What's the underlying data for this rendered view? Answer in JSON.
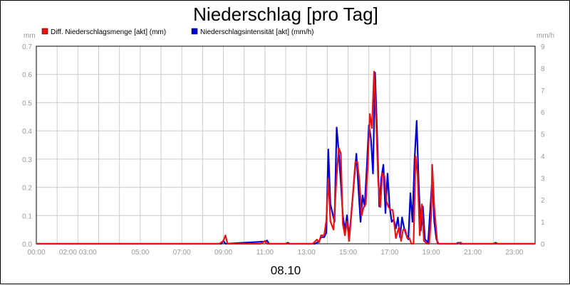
{
  "chart_data": {
    "type": "line",
    "title": "Niederschlag [pro Tag]",
    "date_label": "08.10",
    "y_left": {
      "unit": "mm",
      "ylim": [
        0,
        0.7
      ],
      "ticks": [
        "0.0",
        "0.1",
        "0.2",
        "0.3",
        "0.4",
        "0.5",
        "0.6",
        "0.7"
      ]
    },
    "y_right": {
      "unit": "mm/h",
      "ylim": [
        0,
        9
      ],
      "ticks": [
        "0",
        "1",
        "2",
        "3",
        "4",
        "5",
        "6",
        "7",
        "8",
        "9"
      ]
    },
    "x": {
      "range_hours": [
        0,
        24
      ],
      "tick_labels": [
        "00:00",
        "02:00 03:00",
        "05:00",
        "07:00",
        "09:00",
        "11:00",
        "13:00",
        "15:00",
        "17:00",
        "19:00",
        "21:00",
        "23:00"
      ]
    },
    "grid": true,
    "colors": {
      "menge": "#ee1111",
      "intensitaet": "#0000dd",
      "grid": "#cccccc",
      "tick_text": "#999999"
    },
    "series": [
      {
        "name": "Diff. Niederschlagsmenge [akt] (mm)",
        "axis": "left",
        "color": "#ee1111",
        "points": [
          [
            0,
            0
          ],
          [
            8.8,
            0
          ],
          [
            9.0,
            0.01
          ],
          [
            9.1,
            0.03
          ],
          [
            9.2,
            0
          ],
          [
            10.8,
            0
          ],
          [
            11.0,
            0.01
          ],
          [
            11.1,
            0
          ],
          [
            13.3,
            0
          ],
          [
            13.5,
            0.015
          ],
          [
            13.6,
            0.005
          ],
          [
            13.7,
            0.03
          ],
          [
            13.85,
            0.03
          ],
          [
            13.95,
            0.08
          ],
          [
            14.05,
            0.23
          ],
          [
            14.15,
            0.08
          ],
          [
            14.3,
            0.05
          ],
          [
            14.45,
            0.24
          ],
          [
            14.55,
            0.34
          ],
          [
            14.65,
            0.32
          ],
          [
            14.75,
            0.07
          ],
          [
            14.85,
            0.03
          ],
          [
            14.95,
            0.08
          ],
          [
            15.05,
            0.01
          ],
          [
            15.2,
            0.14
          ],
          [
            15.35,
            0.29
          ],
          [
            15.45,
            0.29
          ],
          [
            15.55,
            0.22
          ],
          [
            15.65,
            0.1
          ],
          [
            15.75,
            0.13
          ],
          [
            15.85,
            0.14
          ],
          [
            15.95,
            0.28
          ],
          [
            16.05,
            0.46
          ],
          [
            16.15,
            0.41
          ],
          [
            16.25,
            0.61
          ],
          [
            16.35,
            0.44
          ],
          [
            16.45,
            0.22
          ],
          [
            16.55,
            0.13
          ],
          [
            16.65,
            0.25
          ],
          [
            16.75,
            0.24
          ],
          [
            16.85,
            0.15
          ],
          [
            16.95,
            0.13
          ],
          [
            17.05,
            0.12
          ],
          [
            17.15,
            0.12
          ],
          [
            17.3,
            0.02
          ],
          [
            17.45,
            0.06
          ],
          [
            17.55,
            0.01
          ],
          [
            17.65,
            0.05
          ],
          [
            17.75,
            0.05
          ],
          [
            17.85,
            0.02
          ],
          [
            17.95,
            0.02
          ],
          [
            18.05,
            0.0
          ],
          [
            18.15,
            0.0
          ],
          [
            18.25,
            0.31
          ],
          [
            18.35,
            0.24
          ],
          [
            18.45,
            0.03
          ],
          [
            18.55,
            0.14
          ],
          [
            18.65,
            0.01
          ],
          [
            18.8,
            0.0
          ],
          [
            18.9,
            0.0
          ],
          [
            19.0,
            0.1
          ],
          [
            19.05,
            0.28
          ],
          [
            19.15,
            0.13
          ],
          [
            19.3,
            0.0
          ],
          [
            20.3,
            0.0
          ],
          [
            20.4,
            0.005
          ],
          [
            20.5,
            0.0
          ],
          [
            24,
            0
          ]
        ]
      },
      {
        "name": "Niederschlagsintensität [akt] (mm/h)",
        "axis": "right",
        "color": "#0000dd",
        "points": [
          [
            0,
            0
          ],
          [
            8.9,
            0
          ],
          [
            9.0,
            0.15
          ],
          [
            9.1,
            0
          ],
          [
            11.0,
            0.1
          ],
          [
            11.1,
            0.15
          ],
          [
            11.2,
            0
          ],
          [
            12.0,
            0
          ],
          [
            12.1,
            0.05
          ],
          [
            12.2,
            0
          ],
          [
            13.4,
            0
          ],
          [
            13.6,
            0.1
          ],
          [
            13.7,
            0.3
          ],
          [
            13.85,
            0.3
          ],
          [
            13.95,
            0.5
          ],
          [
            14.05,
            4.3
          ],
          [
            14.15,
            1.8
          ],
          [
            14.25,
            1.4
          ],
          [
            14.35,
            1.0
          ],
          [
            14.45,
            5.3
          ],
          [
            14.55,
            4.2
          ],
          [
            14.65,
            2.8
          ],
          [
            14.75,
            1.3
          ],
          [
            14.85,
            0.6
          ],
          [
            14.95,
            1.3
          ],
          [
            15.05,
            0.3
          ],
          [
            15.15,
            1.3
          ],
          [
            15.3,
            3.0
          ],
          [
            15.4,
            4.1
          ],
          [
            15.5,
            2.5
          ],
          [
            15.6,
            1.0
          ],
          [
            15.7,
            2.2
          ],
          [
            15.8,
            1.7
          ],
          [
            15.9,
            3.5
          ],
          [
            16.0,
            5.4
          ],
          [
            16.1,
            4.8
          ],
          [
            16.2,
            3.2
          ],
          [
            16.3,
            7.8
          ],
          [
            16.4,
            5.0
          ],
          [
            16.5,
            1.7
          ],
          [
            16.6,
            3.0
          ],
          [
            16.7,
            3.6
          ],
          [
            16.8,
            1.4
          ],
          [
            16.9,
            3.2
          ],
          [
            17.0,
            1.7
          ],
          [
            17.1,
            1.0
          ],
          [
            17.2,
            1.1
          ],
          [
            17.3,
            0.7
          ],
          [
            17.4,
            1.2
          ],
          [
            17.5,
            0.3
          ],
          [
            17.6,
            1.2
          ],
          [
            17.7,
            0.7
          ],
          [
            17.8,
            0.4
          ],
          [
            17.9,
            0.2
          ],
          [
            18.0,
            2.3
          ],
          [
            18.1,
            1.0
          ],
          [
            18.2,
            3.8
          ],
          [
            18.3,
            5.6
          ],
          [
            18.4,
            2.7
          ],
          [
            18.5,
            0.6
          ],
          [
            18.6,
            1.7
          ],
          [
            18.7,
            0.2
          ],
          [
            18.85,
            0.05
          ],
          [
            18.95,
            1.5
          ],
          [
            19.05,
            3.0
          ],
          [
            19.15,
            1.0
          ],
          [
            19.25,
            0.2
          ],
          [
            19.35,
            0
          ],
          [
            20.2,
            0
          ],
          [
            20.3,
            0.05
          ],
          [
            20.4,
            0
          ],
          [
            22.0,
            0
          ],
          [
            22.1,
            0.05
          ],
          [
            22.2,
            0
          ],
          [
            24,
            0
          ]
        ]
      }
    ]
  }
}
